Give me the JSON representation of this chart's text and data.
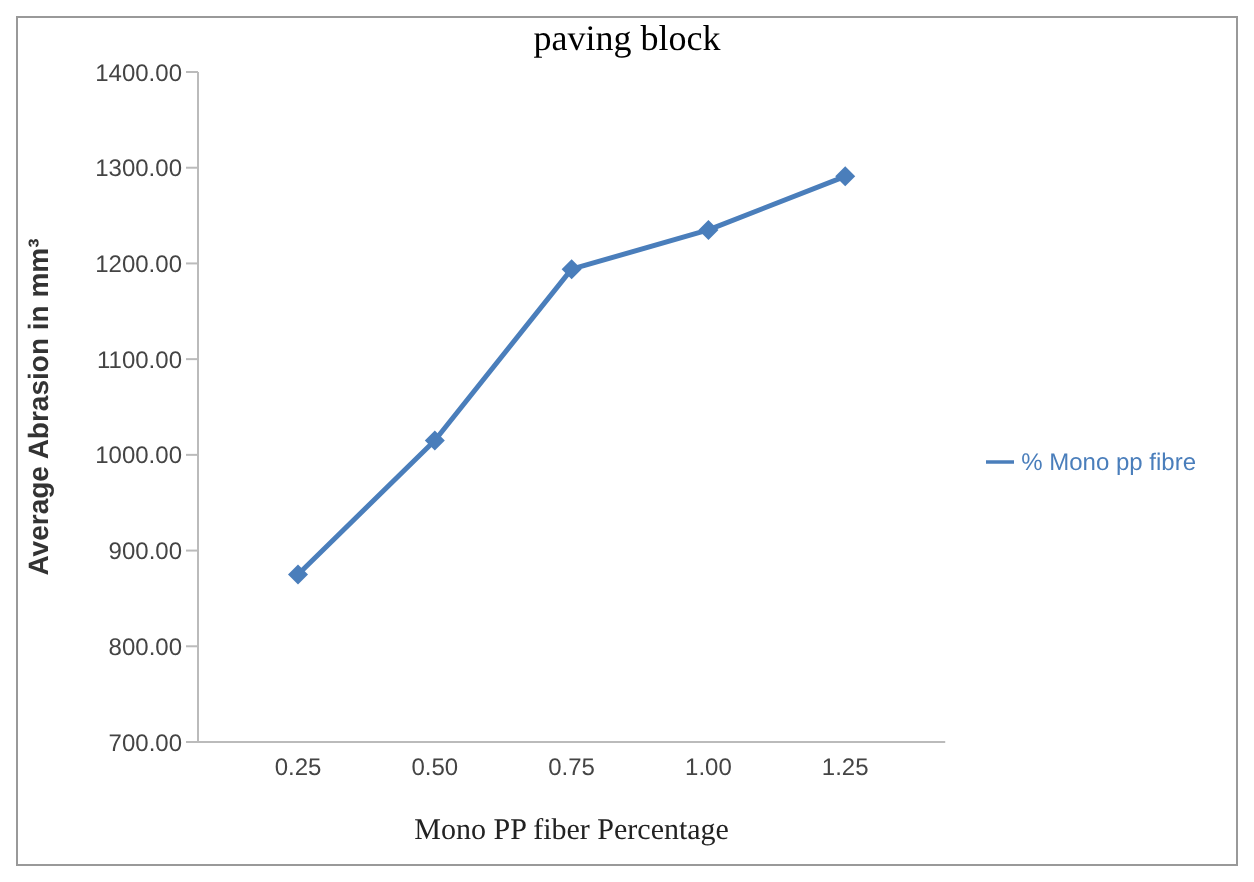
{
  "chart_data": {
    "type": "line",
    "title": "paving block",
    "xlabel": "Mono PP  fiber Percentage",
    "ylabel": "Average Abrasion in mm³",
    "categories": [
      "0.25",
      "0.50",
      "0.75",
      "1.00",
      "1.25"
    ],
    "series": [
      {
        "name": "% Mono pp fibre",
        "color": "#4a7ebb",
        "values": [
          875,
          1015,
          1194,
          1235,
          1291
        ]
      }
    ],
    "ylim": [
      700,
      1400
    ],
    "yticks": [
      {
        "value": 700,
        "label": "700.00"
      },
      {
        "value": 800,
        "label": "800.00"
      },
      {
        "value": 900,
        "label": "900.00"
      },
      {
        "value": 1000,
        "label": "1000.00"
      },
      {
        "value": 1100,
        "label": "1100.00"
      },
      {
        "value": 1200,
        "label": "1200.00"
      },
      {
        "value": 1300,
        "label": "1300.00"
      },
      {
        "value": 1400,
        "label": "1400.00"
      }
    ],
    "grid": false,
    "legend": "right",
    "marker": "diamond",
    "line_style": "solid"
  }
}
